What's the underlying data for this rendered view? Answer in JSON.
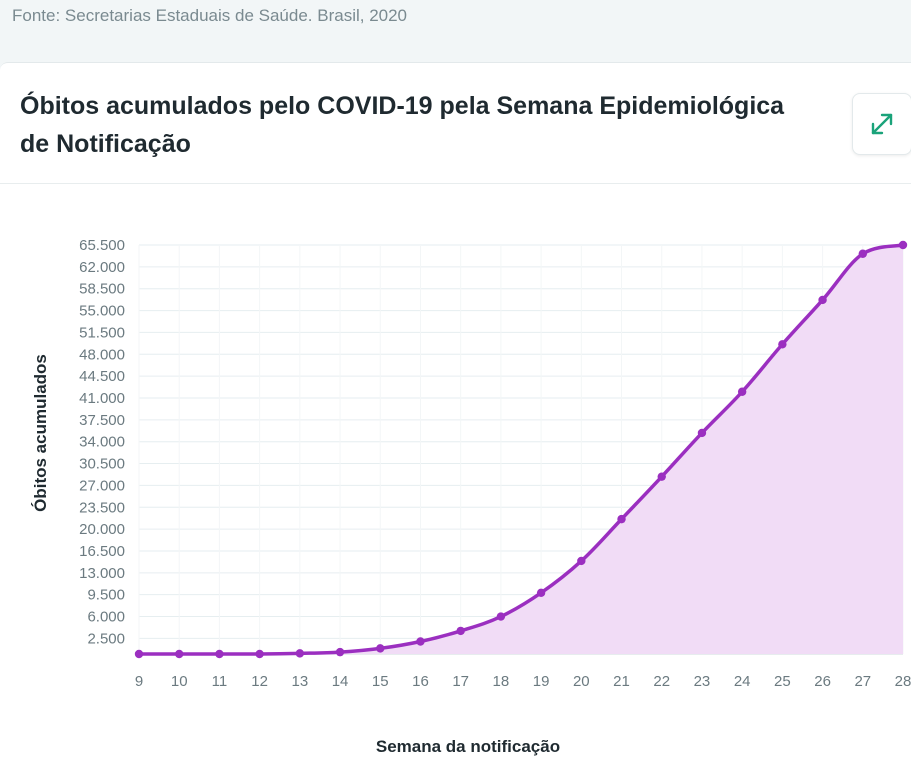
{
  "source": {
    "text": "Fonte: Secretarias Estaduais de Saúde. Brasil, 2020"
  },
  "card": {
    "title": "Óbitos acumulados pelo COVID-19 pela Semana Epidemiológica de Notificação",
    "expand_icon": "expand-arrows-icon"
  },
  "colors": {
    "line": "#9b2fc0",
    "area": "#f1dcf6",
    "grid": "#e6eef0",
    "accent": "#1aa37a"
  },
  "chart_data": {
    "type": "area",
    "title": "Óbitos acumulados pelo COVID-19 pela Semana Epidemiológica de Notificação",
    "xlabel": "Semana da notificação",
    "ylabel": "Óbitos acumulados",
    "x": [
      9,
      10,
      11,
      12,
      13,
      14,
      15,
      16,
      17,
      18,
      19,
      20,
      21,
      22,
      23,
      24,
      25,
      26,
      27,
      28
    ],
    "series": [
      {
        "values": [
          0,
          0,
          0,
          0,
          100,
          300,
          900,
          2000,
          3700,
          6000,
          9800,
          14900,
          21600,
          28400,
          35400,
          42000,
          49600,
          56700,
          64100,
          65500
        ]
      }
    ],
    "yticks": [
      2500,
      6000,
      9500,
      13000,
      16500,
      20000,
      23500,
      27000,
      30500,
      34000,
      37500,
      41000,
      44500,
      48000,
      51500,
      55000,
      58500,
      62000,
      65500
    ],
    "ytick_labels": [
      "2.500",
      "6.000",
      "9.500",
      "13.000",
      "16.500",
      "20.000",
      "23.500",
      "27.000",
      "30.500",
      "34.000",
      "37.500",
      "41.000",
      "44.500",
      "48.000",
      "51.500",
      "55.000",
      "58.500",
      "62.000",
      "65.500"
    ],
    "ylim": [
      0,
      65500
    ],
    "xlim": [
      9,
      28
    ],
    "grid": true,
    "legend": "none"
  }
}
